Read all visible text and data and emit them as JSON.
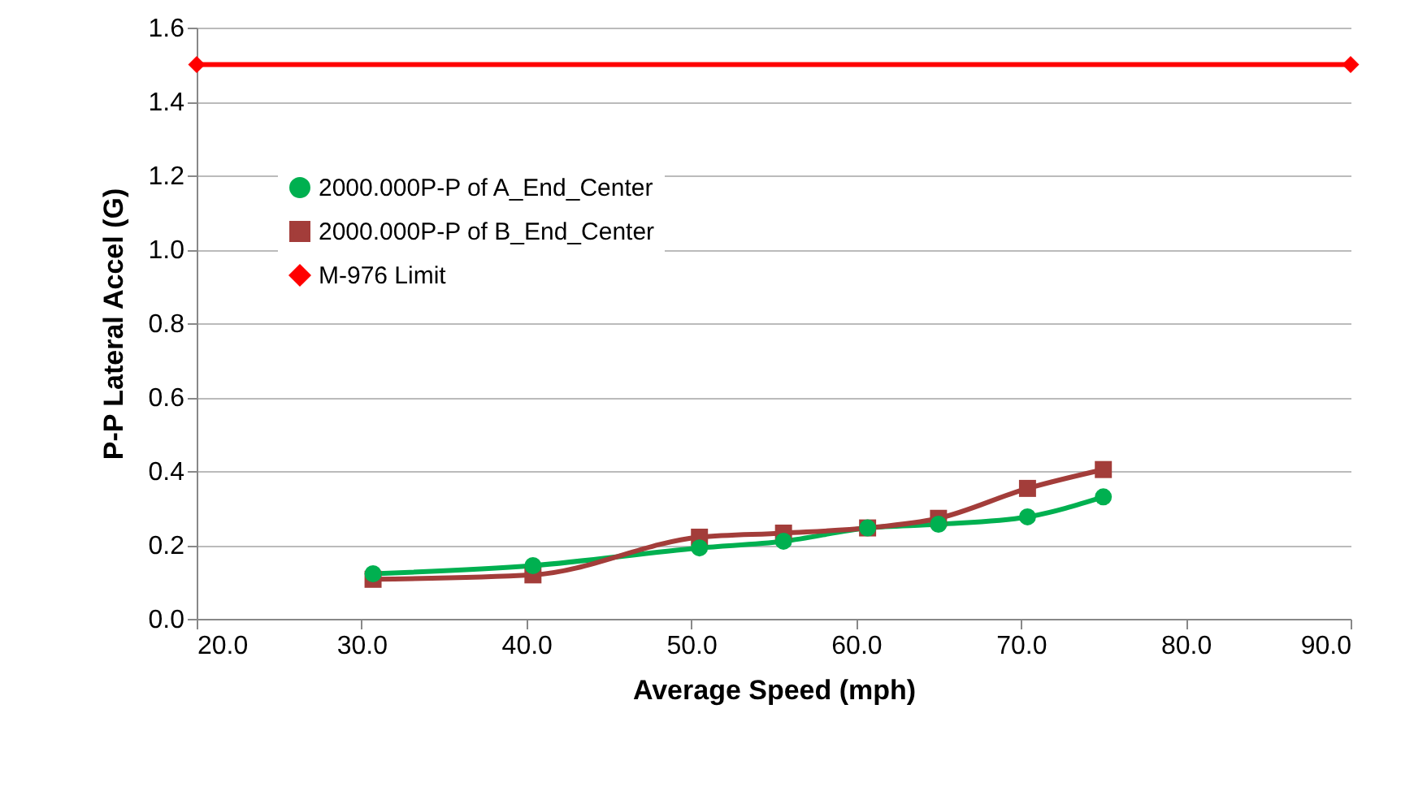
{
  "chart_data": {
    "type": "line",
    "xlabel": "Average Speed (mph)",
    "ylabel": "P-P Lateral Accel (G)",
    "xlim": [
      20,
      90
    ],
    "xticks": [
      {
        "value": 20,
        "label": "20.0"
      },
      {
        "value": 30,
        "label": "30.0"
      },
      {
        "value": 40,
        "label": "40.0"
      },
      {
        "value": 50,
        "label": "50.0"
      },
      {
        "value": 60,
        "label": "60.0"
      },
      {
        "value": 70,
        "label": "70.0"
      },
      {
        "value": 80,
        "label": "80.0"
      },
      {
        "value": 90,
        "label": "90.0"
      }
    ],
    "ylim": [
      0,
      1.6
    ],
    "yticks": [
      {
        "value": 0,
        "label": "0.0"
      },
      {
        "value": 0.2,
        "label": "0.2"
      },
      {
        "value": 0.4,
        "label": "0.4"
      },
      {
        "value": 0.6,
        "label": "0.6"
      },
      {
        "value": 0.8,
        "label": "0.8"
      },
      {
        "value": 1,
        "label": "1.0"
      },
      {
        "value": 1.2,
        "label": "1.2"
      },
      {
        "value": 1.4,
        "label": "1.4"
      },
      {
        "value": 1.6,
        "label": "1.6"
      }
    ],
    "grid": "y",
    "legend": "top left",
    "line_style": "solid",
    "series": [
      {
        "name": "2000.000P-P of A_End_Center",
        "color": "#00b050",
        "marker": "circle",
        "x": [
          30.7,
          40.4,
          50.5,
          55.6,
          60.7,
          65.0,
          70.4,
          75.0
        ],
        "values": [
          0.122,
          0.144,
          0.192,
          0.21,
          0.246,
          0.256,
          0.276,
          0.33
        ]
      },
      {
        "name": "2000.000P-P of B_End_Center",
        "color": "#a33d3a",
        "marker": "square",
        "x": [
          30.7,
          40.4,
          50.5,
          55.6,
          60.7,
          65.0,
          70.4,
          75.0
        ],
        "values": [
          0.107,
          0.119,
          0.221,
          0.232,
          0.246,
          0.272,
          0.353,
          0.404
        ]
      },
      {
        "name": "M-976 Limit",
        "color": "#ff0000",
        "marker": "diamond",
        "x": [
          20,
          90
        ],
        "values": [
          1.5,
          1.5
        ]
      }
    ]
  }
}
